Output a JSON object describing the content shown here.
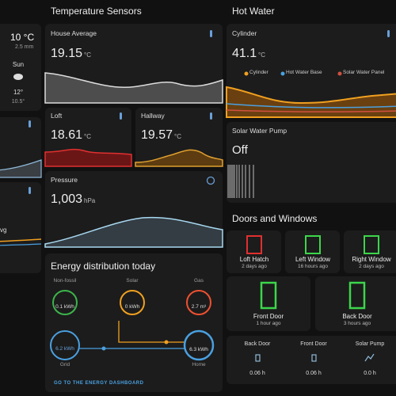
{
  "left": {
    "temperature": "10 °C",
    "rain": "2.5 mm",
    "day": "Sun",
    "high": "12°",
    "low": "10.5°",
    "partial": "vg"
  },
  "temperature_sensors": {
    "title": "Temperature Sensors",
    "cards": [
      {
        "name": "House Average",
        "value": "19.15",
        "unit": "°C"
      },
      {
        "name": "Loft",
        "value": "18.61",
        "unit": "°C"
      },
      {
        "name": "Hallway",
        "value": "19.57",
        "unit": "°C"
      },
      {
        "name": "Pressure",
        "value": "1,003",
        "unit": "hPa"
      }
    ]
  },
  "energy": {
    "title": "Energy distribution today",
    "nodes": [
      {
        "label": "Non-fossil",
        "value": "0.1 kWh"
      },
      {
        "label": "Solar",
        "value": "0 kWh"
      },
      {
        "label": "Gas",
        "value": "2.7 m³"
      },
      {
        "label": "Grid",
        "value": "6.2 kWh"
      },
      {
        "label": "Home",
        "value": "6.3 kWh"
      }
    ],
    "link": "GO TO THE ENERGY DASHBOARD"
  },
  "hot_water": {
    "title": "Hot Water",
    "cylinder": {
      "name": "Cylinder",
      "value": "41.1",
      "unit": "°C",
      "legend": [
        "Cylinder",
        "Hot Water Base",
        "Solar Water Panel"
      ]
    },
    "pump": {
      "name": "Solar Water Pump",
      "state": "Off"
    }
  },
  "doors": {
    "title": "Doors and Windows",
    "tiles": [
      {
        "name": "Loft Hatch",
        "time": "2 days ago"
      },
      {
        "name": "Left Window",
        "time": "16 hours ago"
      },
      {
        "name": "Right Window",
        "time": "2 days ago"
      },
      {
        "name": "Front Door",
        "time": "1 hour ago"
      },
      {
        "name": "Back Door",
        "time": "3 hours ago"
      }
    ],
    "durations": [
      {
        "name": "Back Door",
        "value": "0.06 h"
      },
      {
        "name": "Front Door",
        "value": "0.06 h"
      },
      {
        "name": "Solar Pump",
        "value": "0.0 h"
      }
    ]
  }
}
